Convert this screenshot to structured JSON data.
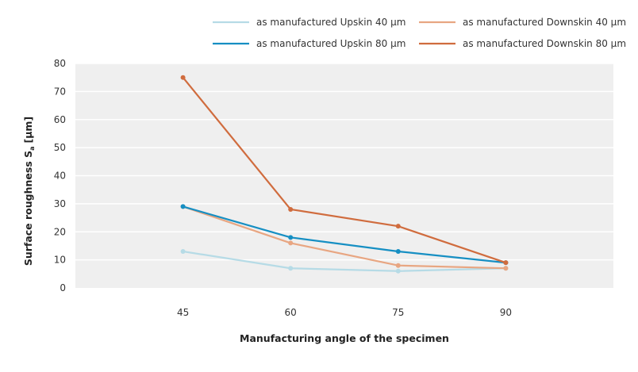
{
  "chart_data": {
    "type": "line",
    "title": "",
    "xlabel": "Manufacturing angle of the specimen",
    "ylabel": {
      "main": "Surface roughness S",
      "subscript": "a",
      "unit": "[µm]"
    },
    "x": [
      45,
      60,
      75,
      90
    ],
    "x_tick_labels": [
      "45",
      "60",
      "75",
      "90"
    ],
    "xlim": [
      30,
      105
    ],
    "ylim": [
      0,
      80
    ],
    "y_ticks": [
      0,
      10,
      20,
      30,
      40,
      50,
      60,
      70,
      80
    ],
    "grid": true,
    "legend_position": "top",
    "series": [
      {
        "name": "as manufactured Upskin 40 µm",
        "color": "#b6dbe6",
        "values": [
          13,
          7,
          6,
          7
        ]
      },
      {
        "name": "as manufactured Downskin 40 µm",
        "color": "#e8a682",
        "values": [
          29,
          16,
          8,
          7
        ]
      },
      {
        "name": "as manufactured Upskin 80 µm",
        "color": "#168fc3",
        "values": [
          29,
          18,
          13,
          9
        ]
      },
      {
        "name": "as manufactured Downskin 80 µm",
        "color": "#d06c3e",
        "values": [
          75,
          28,
          22,
          9
        ]
      }
    ]
  }
}
